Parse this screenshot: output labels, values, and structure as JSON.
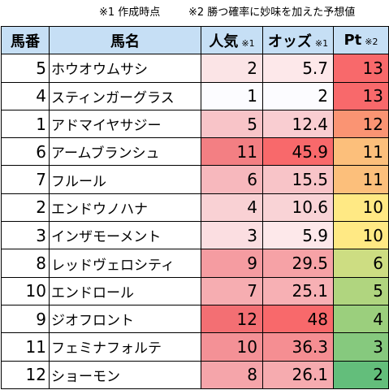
{
  "notes": {
    "note1": "※1 作成時点",
    "note2": "※2 勝つ確率に妙味を加えた予想値"
  },
  "table": {
    "headers": {
      "num": "馬番",
      "name": "馬名",
      "pop": "人気",
      "pop_mark": "※1",
      "odds": "オッズ",
      "odds_mark": "※1",
      "pt": "Pt",
      "pt_mark": "※2"
    },
    "rows": [
      {
        "num": "5",
        "name": "ホウオウムサシ",
        "pop": "2",
        "odds": "5.7",
        "pt": "13",
        "pop_color": "#fbe4e6",
        "odds_color": "#fde8ea",
        "pt_color": "#f8696b"
      },
      {
        "num": "4",
        "name": "スティンガーグラス",
        "pop": "1",
        "odds": "2",
        "pt": "13",
        "pop_color": "#fcfcff",
        "odds_color": "#fcfcff",
        "pt_color": "#f8696b"
      },
      {
        "num": "1",
        "name": "アドマイヤサジー",
        "pop": "5",
        "odds": "12.4",
        "pt": "12",
        "pop_color": "#f8c4c8",
        "odds_color": "#f9cdd1",
        "pt_color": "#fa9473"
      },
      {
        "num": "6",
        "name": "アームブランシュ",
        "pop": "11",
        "odds": "45.9",
        "pt": "11",
        "pop_color": "#f37f83",
        "odds_color": "#f8696b",
        "pt_color": "#fcbf7b"
      },
      {
        "num": "7",
        "name": "フルール",
        "pop": "6",
        "odds": "15.5",
        "pt": "11",
        "pop_color": "#f7b8bd",
        "odds_color": "#f8c4c8",
        "pt_color": "#fcbf7b"
      },
      {
        "num": "2",
        "name": "エンドウノハナ",
        "pop": "4",
        "odds": "10.6",
        "pt": "10",
        "pop_color": "#f9d1d4",
        "odds_color": "#f9d3d6",
        "pt_color": "#ffe984"
      },
      {
        "num": "3",
        "name": "インザモーメント",
        "pop": "3",
        "odds": "5.9",
        "pt": "10",
        "pop_color": "#fbdee1",
        "odds_color": "#fde8ea",
        "pt_color": "#ffe984"
      },
      {
        "num": "8",
        "name": "レッドヴェロシティ",
        "pop": "9",
        "odds": "29.5",
        "pt": "6",
        "pop_color": "#f59ca1",
        "odds_color": "#f6a2a6",
        "pt_color": "#cddd82"
      },
      {
        "num": "10",
        "name": "エンドロール",
        "pop": "7",
        "odds": "25.1",
        "pt": "5",
        "pop_color": "#f6adb1",
        "odds_color": "#f7b0b4",
        "pt_color": "#b0d57f"
      },
      {
        "num": "9",
        "name": "ジオフロント",
        "pop": "12",
        "odds": "48",
        "pt": "4",
        "pop_color": "#f36f73",
        "odds_color": "#f8696b",
        "pt_color": "#9bcf7d"
      },
      {
        "num": "11",
        "name": "フェミナフォルテ",
        "pop": "10",
        "odds": "36.3",
        "pt": "3",
        "pop_color": "#f49196",
        "odds_color": "#f58e92",
        "pt_color": "#86c97e"
      },
      {
        "num": "12",
        "name": "ショーモン",
        "pop": "8",
        "odds": "26.1",
        "pt": "2",
        "pop_color": "#f5a5aa",
        "odds_color": "#f6abaf",
        "pt_color": "#63be7b"
      }
    ]
  }
}
